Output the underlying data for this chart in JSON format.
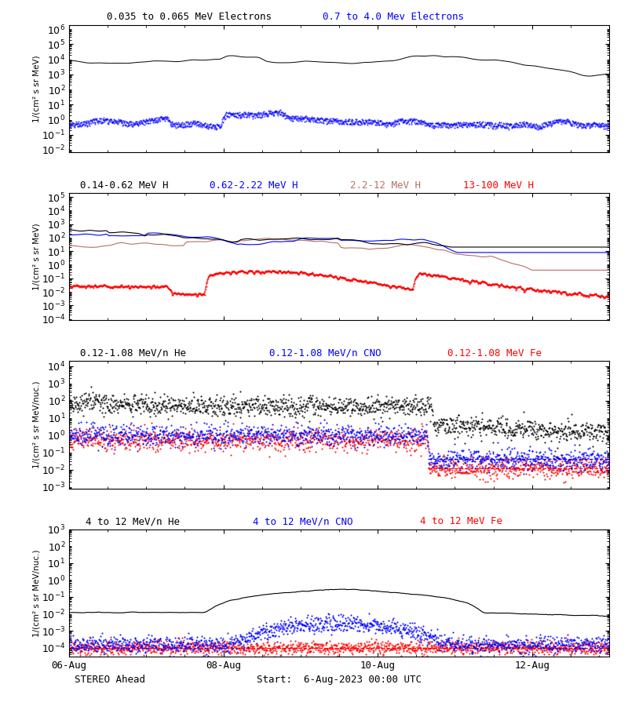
{
  "title_panel1_black": "0.035 to 0.065 MeV Electrons",
  "title_panel1_blue": "0.7 to 4.0 Mev Electrons",
  "title_panel2_black": "0.14-0.62 MeV H",
  "title_panel2_blue": "0.62-2.22 MeV H",
  "title_panel2_brown": "2.2-12 MeV H",
  "title_panel2_red": "13-100 MeV H",
  "title_panel3_black": "0.12-1.08 MeV/n He",
  "title_panel3_blue": "0.12-1.08 MeV/n CNO",
  "title_panel3_red": "0.12-1.08 MeV Fe",
  "title_panel4_black": "4 to 12 MeV/n He",
  "title_panel4_blue": "4 to 12 MeV/n CNO",
  "title_panel4_red": "4 to 12 MeV Fe",
  "xlabel_left": "STEREO Ahead",
  "xlabel_center": "Start:  6-Aug-2023 00:00 UTC",
  "xtick_labels": [
    "06-Aug",
    "08-Aug",
    "10-Aug",
    "12-Aug"
  ],
  "ylabel_panel1": "1/(cm² s sr MeV)",
  "ylabel_panel2": "1/(cm² s sr MeV)",
  "ylabel_panel3": "1/(cm² s sr MeV/nuc.)",
  "ylabel_panel4": "1/(cm² s sr MeV/nuc.)",
  "background_color": "#ffffff",
  "panel1_ylim": [
    0.007,
    2000000
  ],
  "panel2_ylim": [
    8e-05,
    200000
  ],
  "panel3_ylim": [
    0.0008,
    20000
  ],
  "panel4_ylim": [
    3e-05,
    1000
  ],
  "num_points": 1440,
  "brown_color": "#b87060"
}
